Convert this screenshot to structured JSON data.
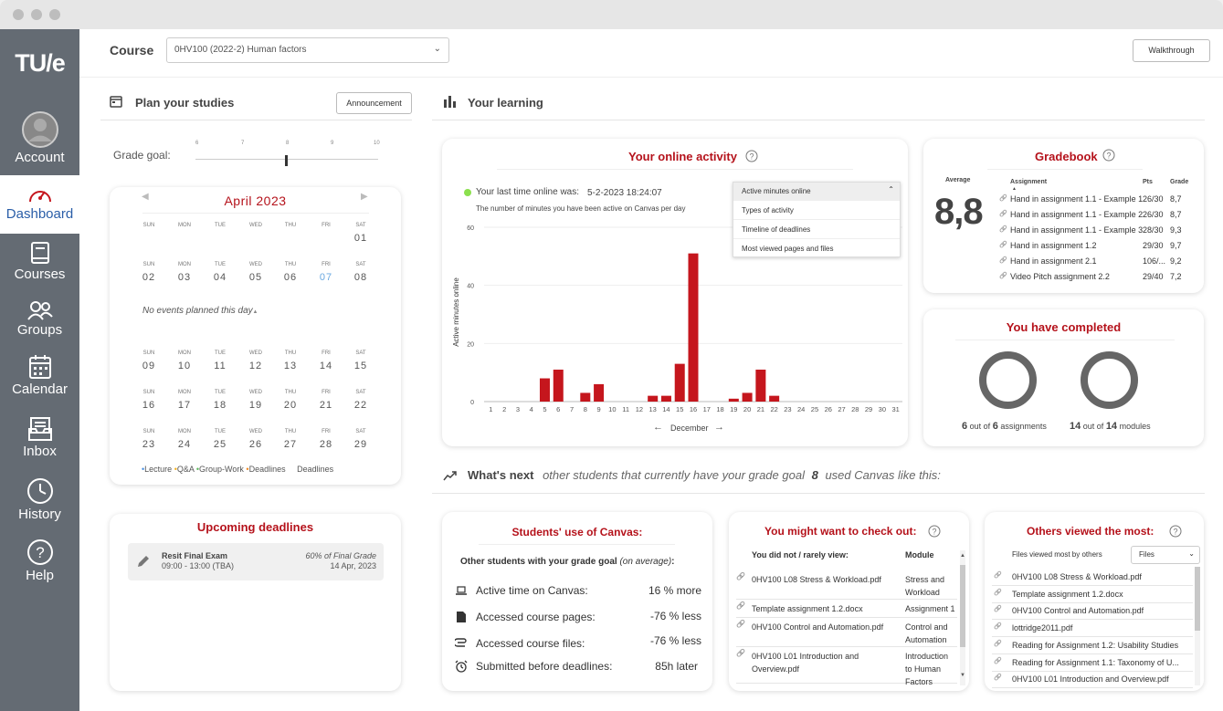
{
  "sidebar": {
    "logo": "TU/e",
    "items": [
      {
        "label": "Account",
        "icon": "avatar"
      },
      {
        "label": "Dashboard",
        "icon": "gauge-icon"
      },
      {
        "label": "Courses",
        "icon": "book-icon"
      },
      {
        "label": "Groups",
        "icon": "people-icon"
      },
      {
        "label": "Calendar",
        "icon": "calendar-icon"
      },
      {
        "label": "Inbox",
        "icon": "inbox-icon"
      },
      {
        "label": "History",
        "icon": "clock-icon"
      },
      {
        "label": "Help",
        "icon": "help-icon"
      }
    ]
  },
  "header": {
    "course_label": "Course",
    "course_value": "0HV100 (2022-2) Human factors",
    "walkthrough": "Walkthrough"
  },
  "plan": {
    "title": "Plan your studies",
    "announcement": "Announcement",
    "grade_goal_label": "Grade goal:",
    "ticks": [
      "6",
      "7",
      "8",
      "9",
      "10"
    ],
    "grade_goal_value": 8
  },
  "calendar": {
    "month": "April 2023",
    "days": [
      "SUN",
      "MON",
      "TUE",
      "WED",
      "THU",
      "FRI",
      "SAT"
    ],
    "weeks": [
      [
        "",
        "",
        "",
        "",
        "",
        "",
        "01"
      ],
      [
        "02",
        "03",
        "04",
        "05",
        "06",
        "07",
        "08"
      ],
      [
        "09",
        "10",
        "11",
        "12",
        "13",
        "14",
        "15"
      ],
      [
        "16",
        "17",
        "18",
        "19",
        "20",
        "21",
        "22"
      ],
      [
        "23",
        "24",
        "25",
        "26",
        "27",
        "28",
        "29"
      ]
    ],
    "selected": "07",
    "no_events": "No events planned this day",
    "legend": [
      "Lecture",
      "Q&A",
      "Group-Work",
      "Deadlines",
      "Deadlines"
    ]
  },
  "deadlines": {
    "title": "Upcoming deadlines",
    "item_title": "Resit Final Exam",
    "item_time": "09:00 - 13:00 (TBA)",
    "item_weight": "60% of Final Grade",
    "item_date": "14 Apr, 2023"
  },
  "learning": {
    "title": "Your learning"
  },
  "activity": {
    "title": "Your online activity",
    "last_online_label": "Your last time online was:",
    "last_online_value": "5-2-2023 18:24:07",
    "subtitle": "The number of minutes you have been active on Canvas per day",
    "dropdown_selected": "Active minutes online",
    "dropdown_options": [
      "Types of activity",
      "Timeline of deadlines",
      "Most viewed pages and files"
    ],
    "month_nav": "December"
  },
  "chart_data": {
    "type": "bar",
    "categories": [
      "1",
      "2",
      "3",
      "4",
      "5",
      "6",
      "7",
      "8",
      "9",
      "10",
      "11",
      "12",
      "13",
      "14",
      "15",
      "16",
      "17",
      "18",
      "19",
      "20",
      "21",
      "22",
      "23",
      "24",
      "25",
      "26",
      "27",
      "28",
      "29",
      "30",
      "31"
    ],
    "values": [
      0,
      0,
      0,
      0,
      8,
      11,
      0,
      3,
      6,
      0,
      0,
      0,
      2,
      2,
      13,
      51,
      0,
      0,
      1,
      3,
      11,
      2,
      0,
      0,
      0,
      0,
      0,
      0,
      0,
      0,
      0
    ],
    "ylabel": "Active minutes online",
    "xlabel": "December",
    "yticks": [
      0,
      20,
      40,
      60
    ],
    "ylim": [
      0,
      60
    ],
    "color": "#c5161d"
  },
  "gradebook": {
    "title": "Gradebook",
    "average_label": "Average",
    "average": "8,8",
    "headers": [
      "Assignment",
      "Pts",
      "Grade"
    ],
    "rows": [
      [
        "Hand in assignment 1.1 - Example 1",
        "26/30",
        "8,7"
      ],
      [
        "Hand in assignment 1.1 - Example 2",
        "26/30",
        "8,7"
      ],
      [
        "Hand in assignment 1.1 - Example 3",
        "28/30",
        "9,3"
      ],
      [
        "Hand in assignment 1.2",
        "29/30",
        "9,7"
      ],
      [
        "Hand in assignment 2.1",
        "106/...",
        "9,2"
      ],
      [
        "Video Pitch assignment 2.2",
        "29/40",
        "7,2"
      ]
    ]
  },
  "completed": {
    "title": "You have completed",
    "a_done": "6",
    "a_total": "6",
    "a_unit": "assignments",
    "m_done": "14",
    "m_total": "14",
    "m_unit": "modules",
    "out_of": "out of"
  },
  "whats_next": {
    "title": "What's next",
    "text1": "other students that currently have your grade goal",
    "goal": "8",
    "text2": "used Canvas like this:"
  },
  "students_use": {
    "title": "Students' use of Canvas:",
    "subtitle": "Other students with your grade goal",
    "subtitle_em": "(on average)",
    "subtitle_colon": ":",
    "rows": [
      {
        "label": "Active time on Canvas:",
        "value": "16 % more"
      },
      {
        "label": "Accessed course pages:",
        "value": "-76 % less"
      },
      {
        "label": "Accessed course files:",
        "value": "-76 % less"
      },
      {
        "label": "Submitted before deadlines:",
        "value": "85h later"
      }
    ]
  },
  "check_out": {
    "title": "You might want to check out:",
    "col1": "You did not / rarely view:",
    "col2": "Module",
    "rows": [
      {
        "file": "0HV100 L08 Stress & Workload.pdf",
        "module": [
          "Stress and",
          "Workload"
        ]
      },
      {
        "file": "Template assignment 1.2.docx",
        "module": [
          "Assignment 1"
        ]
      },
      {
        "file": "0HV100 Control and Automation.pdf",
        "module": [
          "Control and",
          "Automation"
        ]
      },
      {
        "file": "0HV100 L01 Introduction and Overview.pdf",
        "module": [
          "Introduction",
          "to Human",
          "Factors"
        ]
      }
    ]
  },
  "others": {
    "title": "Others viewed the most:",
    "label": "Files viewed most by others",
    "select": "Files",
    "rows": [
      "0HV100 L08 Stress & Workload.pdf",
      "Template assignment 1.2.docx",
      "0HV100 Control and Automation.pdf",
      "lottridge2011.pdf",
      "Reading for Assignment 1.2: Usability Studies",
      "Reading for Assignment 1.1: Taxonomy of U...",
      "0HV100 L01 Introduction and Overview.pdf"
    ]
  }
}
